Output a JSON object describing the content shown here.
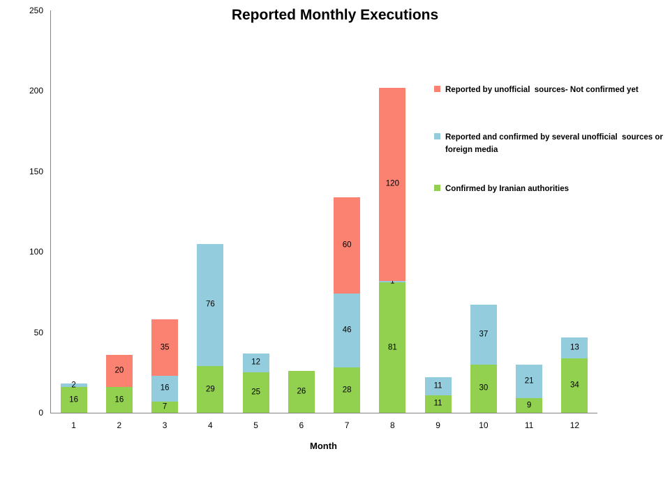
{
  "chart_data": {
    "type": "bar",
    "stacked": true,
    "title": "Reported Monthly Executions",
    "xlabel": "Month",
    "ylabel": "",
    "ylim": [
      0,
      250
    ],
    "yticks": [
      0,
      50,
      100,
      150,
      200,
      250
    ],
    "grid": false,
    "legend_position": "upper-right",
    "axis_color": "#848484",
    "background": "#FFFFFF",
    "categories": [
      "1",
      "2",
      "3",
      "4",
      "5",
      "6",
      "7",
      "8",
      "9",
      "10",
      "11",
      "12"
    ],
    "series": [
      {
        "name": "Confirmed by Iranian authorities",
        "color": "#92D050",
        "values": [
          16,
          16,
          7,
          29,
          25,
          26,
          28,
          81,
          11,
          30,
          9,
          34
        ]
      },
      {
        "name": "Reported and confirmed by several unofficial  sources or foreign media",
        "color": "#93CDDD",
        "values": [
          2,
          0,
          16,
          76,
          12,
          0,
          46,
          1,
          11,
          37,
          21,
          13
        ]
      },
      {
        "name": "Reported by unofficial  sources- Not confirmed yet",
        "color": "#FB8170",
        "values": [
          0,
          20,
          35,
          0,
          0,
          0,
          60,
          120,
          0,
          0,
          0,
          0
        ]
      }
    ],
    "legend_order_top_to_bottom": [
      "Reported by unofficial  sources- Not confirmed yet",
      "Reported and confirmed by several unofficial  sources or foreign media",
      "Confirmed by Iranian authorities"
    ],
    "totals": [
      18,
      36,
      58,
      105,
      37,
      26,
      134,
      202,
      22,
      67,
      30,
      47
    ]
  }
}
